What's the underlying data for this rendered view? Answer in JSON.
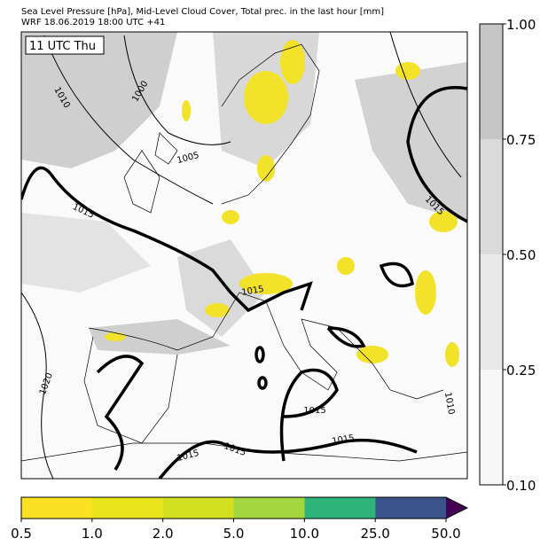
{
  "header": {
    "line1": "Sea Level Pressure [hPa], Mid-Level Cloud Cover, Total prec. in the last hour [mm]",
    "line2": "WRF 18.06.2019 18:00 UTC +41"
  },
  "map": {
    "time_label": "11 UTC Thu",
    "contour_labels": [
      "1010",
      "1000",
      "1005",
      "1015",
      "1015",
      "1015",
      "1020",
      "1015",
      "1015",
      "1015",
      "1015",
      "1010"
    ]
  },
  "cloud_colorbar": {
    "ticks": [
      "1.00",
      "0.75",
      "0.50",
      "0.25",
      "0.10"
    ],
    "colors": [
      "#c6c6c6",
      "#dadada",
      "#e9e9e9",
      "#f7f7f7"
    ]
  },
  "precip_colorbar": {
    "ticks": [
      "0.5",
      "1.0",
      "2.0",
      "5.0",
      "10.0",
      "25.0",
      "50.0"
    ],
    "colors": [
      "#fbe122",
      "#e9e41c",
      "#d3e021",
      "#a2d83d",
      "#2fb47c",
      "#3b528b"
    ],
    "extend_color": "#440154"
  }
}
